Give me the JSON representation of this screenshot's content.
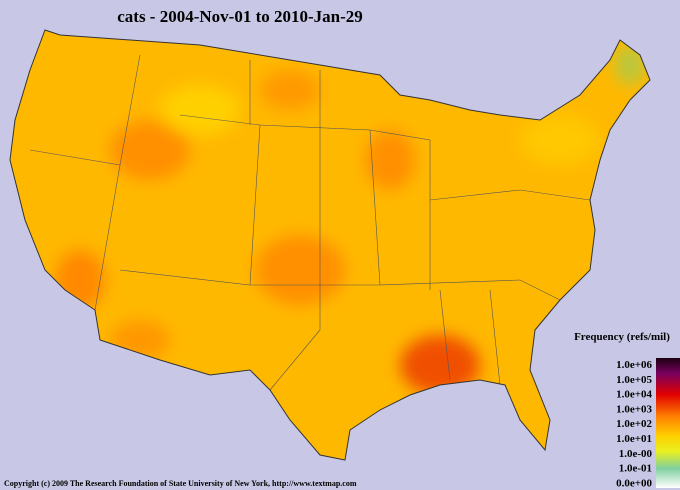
{
  "title": "cats - 2004-Nov-01 to 2010-Jan-29",
  "legend": {
    "title": "Frequency (refs/mil)",
    "labels": [
      "1.0e+06",
      "1.0e+05",
      "1.0e+04",
      "1.0e+03",
      "1.0e+02",
      "1.0e+01",
      "1.0e-00",
      "1.0e-01",
      "0.0e+00"
    ]
  },
  "footer": "Copyright (c) 2009 The Research Foundation of State University of New York, http://www.textmap.com"
}
